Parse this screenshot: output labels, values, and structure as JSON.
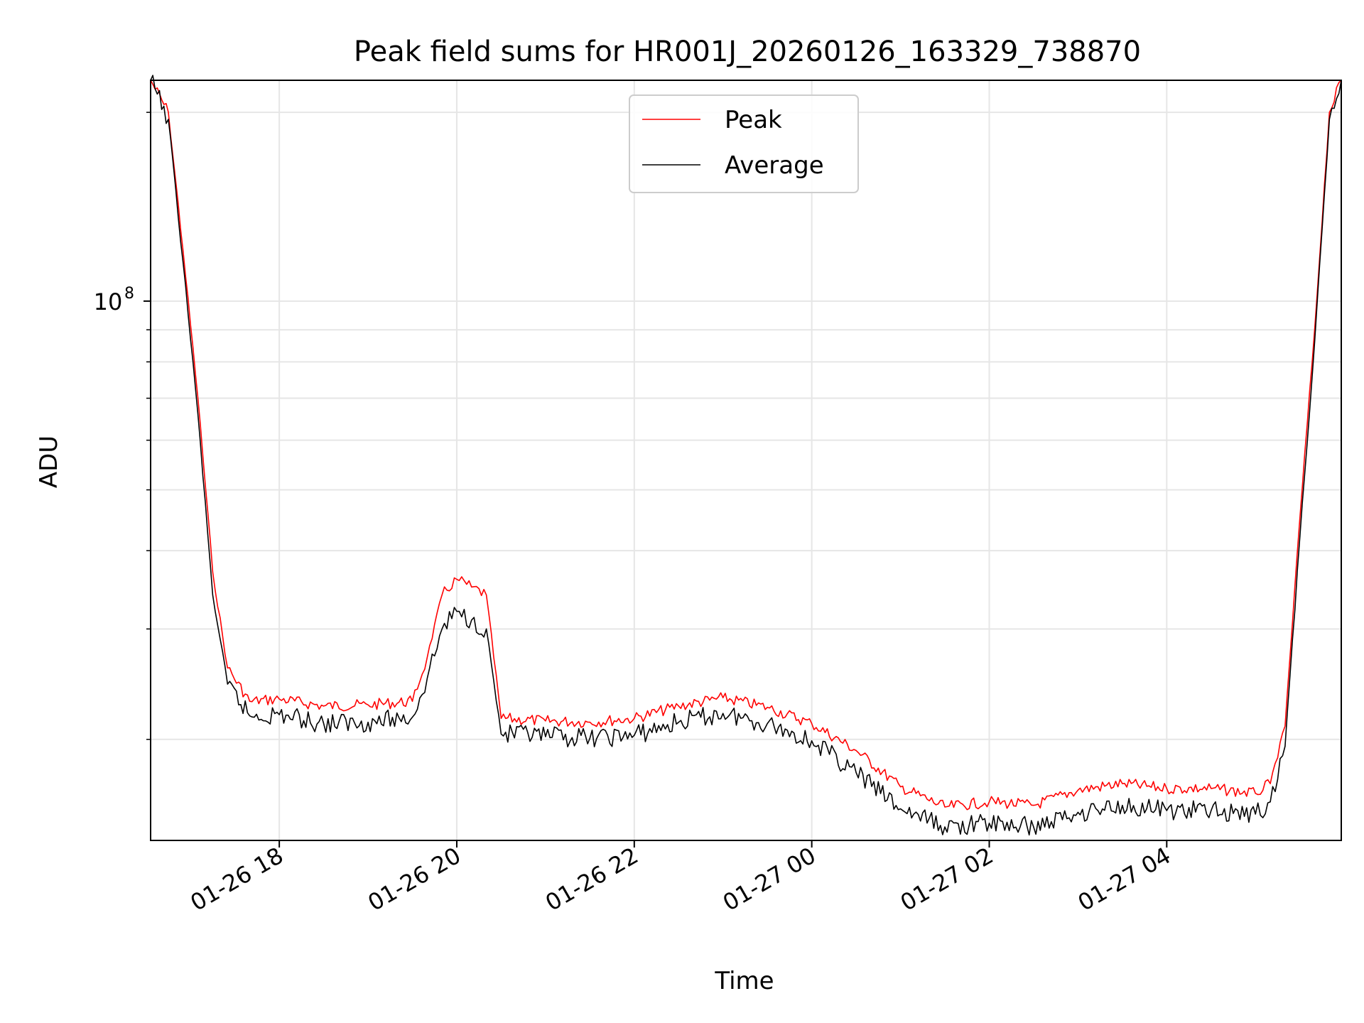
{
  "chart_data": {
    "type": "line",
    "title": "Peak field sums for HR001J_20260126_163329_738870",
    "xlabel": "Time",
    "ylabel": "ADU",
    "yscale": "log",
    "ylim": [
      13800000,
      225000000
    ],
    "xlim": [
      "2026-01-26 16:33",
      "2026-01-27 05:58"
    ],
    "grid": true,
    "legend_position": "upper center",
    "x_ticks": [
      "01-26 18",
      "01-26 20",
      "01-26 22",
      "01-27 00",
      "01-27 02",
      "01-27 04"
    ],
    "y_ticks": [
      {
        "label_base": "10",
        "label_exp": "8",
        "value": 100000000
      }
    ],
    "x": [
      "2026-01-26 16:33",
      "2026-01-26 16:45",
      "2026-01-26 16:55",
      "2026-01-26 17:05",
      "2026-01-26 17:15",
      "2026-01-26 17:25",
      "2026-01-26 17:40",
      "2026-01-26 18:00",
      "2026-01-26 18:30",
      "2026-01-26 19:00",
      "2026-01-26 19:30",
      "2026-01-26 19:40",
      "2026-01-26 19:50",
      "2026-01-26 20:00",
      "2026-01-26 20:10",
      "2026-01-26 20:20",
      "2026-01-26 20:30",
      "2026-01-26 21:00",
      "2026-01-26 21:30",
      "2026-01-26 22:00",
      "2026-01-26 22:30",
      "2026-01-26 23:00",
      "2026-01-26 23:30",
      "2026-01-27 00:00",
      "2026-01-27 00:30",
      "2026-01-27 01:00",
      "2026-01-27 01:30",
      "2026-01-27 02:00",
      "2026-01-27 02:30",
      "2026-01-27 03:00",
      "2026-01-27 03:30",
      "2026-01-27 04:00",
      "2026-01-27 04:30",
      "2026-01-27 05:00",
      "2026-01-27 05:10",
      "2026-01-27 05:20",
      "2026-01-27 05:30",
      "2026-01-27 05:40",
      "2026-01-27 05:50",
      "2026-01-27 05:58"
    ],
    "series": [
      {
        "name": "Peak",
        "color": "#ff0000",
        "values": [
          225000000,
          200000000,
          120000000,
          70000000,
          37000000,
          26000000,
          23000000,
          23200000,
          22600000,
          22700000,
          23000000,
          27000000,
          34000000,
          36000000,
          35000000,
          34000000,
          21600000,
          21400000,
          21300000,
          21600000,
          22600000,
          23300000,
          22500000,
          21200000,
          19200000,
          16800000,
          15600000,
          15900000,
          15700000,
          16600000,
          17000000,
          16700000,
          16700000,
          16400000,
          17000000,
          21000000,
          45000000,
          90000000,
          200000000,
          225000000
        ]
      },
      {
        "name": "Average",
        "color": "#000000",
        "values": [
          225000000,
          195000000,
          115000000,
          66000000,
          34000000,
          24500000,
          21800000,
          21900000,
          21200000,
          21300000,
          21700000,
          25000000,
          30000000,
          32000000,
          31000000,
          30000000,
          20400000,
          20200000,
          20100000,
          20300000,
          21300000,
          22000000,
          21200000,
          19900000,
          17700000,
          15500000,
          14500000,
          14700000,
          14500000,
          15300000,
          15700000,
          15400000,
          15400000,
          15200000,
          15900000,
          19500000,
          42000000,
          86000000,
          195000000,
          225000000
        ]
      }
    ]
  }
}
